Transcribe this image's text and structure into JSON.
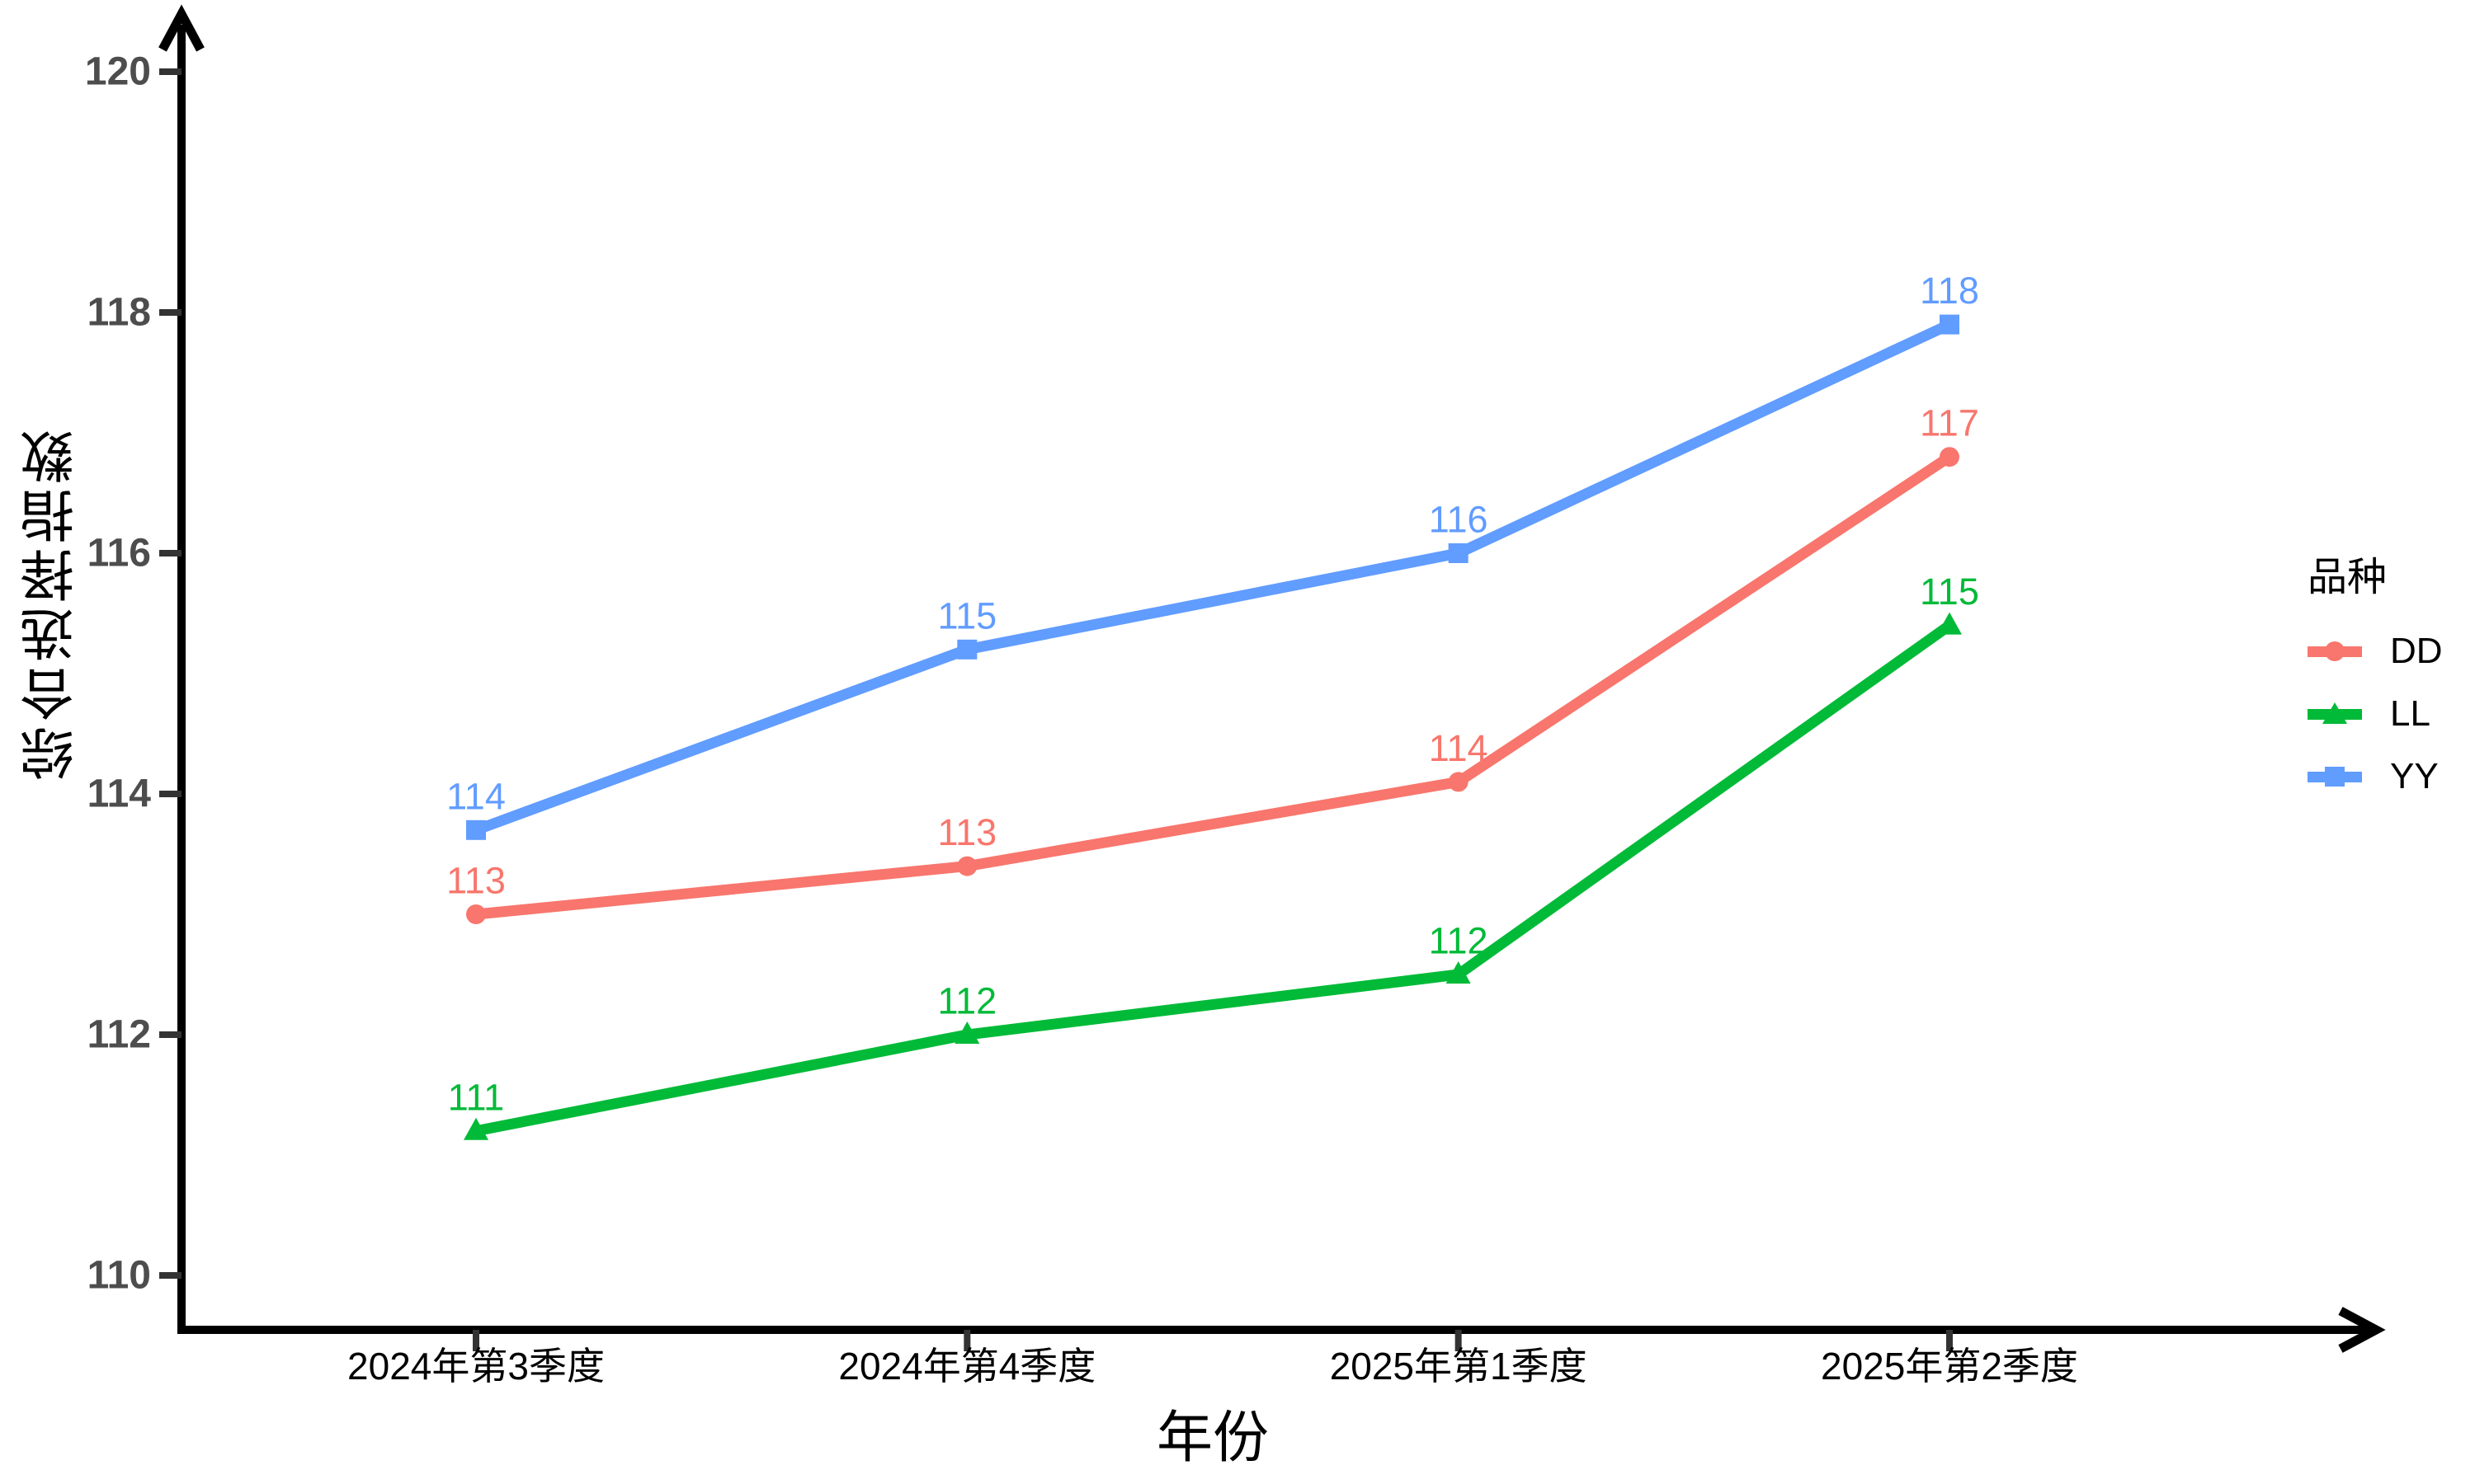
{
  "chart_data": {
    "type": "line",
    "title": "",
    "xlabel": "年份",
    "ylabel": "综合选择指数",
    "categories": [
      "2024年第3季度",
      "2024年第4季度",
      "2025年第1季度",
      "2025年第2季度"
    ],
    "series": [
      {
        "name": "DD",
        "color": "#F8766D",
        "marker": "circle",
        "values": [
          113.0,
          113.4,
          114.1,
          116.8
        ],
        "point_labels": [
          "113",
          "113",
          "114",
          "117"
        ]
      },
      {
        "name": "LL",
        "color": "#00BA38",
        "marker": "triangle",
        "values": [
          111.2,
          112.0,
          112.5,
          115.4
        ],
        "point_labels": [
          "111",
          "112",
          "112",
          "115"
        ]
      },
      {
        "name": "YY",
        "color": "#619CFF",
        "marker": "square",
        "values": [
          113.7,
          115.2,
          116.0,
          117.9
        ],
        "point_labels": [
          "114",
          "115",
          "116",
          "118"
        ]
      }
    ],
    "y_ticks": [
      "110",
      "112",
      "114",
      "116",
      "118",
      "120"
    ],
    "ylim": [
      109.5,
      120.6
    ],
    "legend_title": "品种",
    "legend_position": "right",
    "grid": false,
    "style": {
      "axis_color": "#000000",
      "tick_mark_color": "#333333",
      "y_tick_label_color": "#4D4D4D",
      "x_tick_label_color": "#000000"
    }
  }
}
